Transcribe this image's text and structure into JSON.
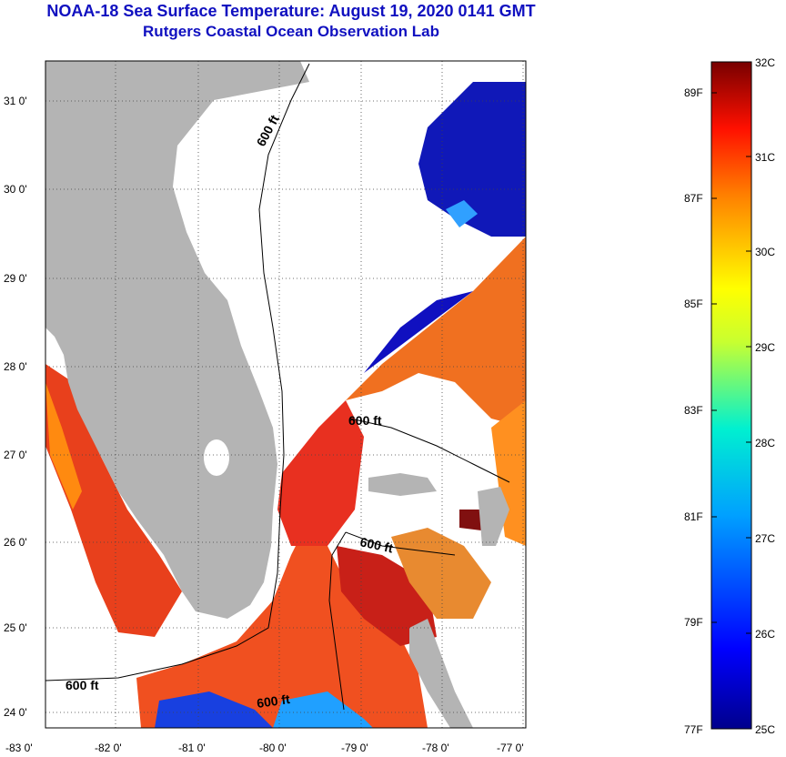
{
  "title": "NOAA-18 Sea Surface Temperature:  August 19, 2020 0141 GMT",
  "subtitle": "Rutgers Coastal Ocean Observation Lab",
  "map": {
    "lat_ticks": [
      "31 0'",
      "30 0'",
      "29 0'",
      "28 0'",
      "27 0'",
      "26 0'",
      "25 0'",
      "24 0'"
    ],
    "lon_ticks": [
      "-83 0'",
      "-82 0'",
      "-81 0'",
      "-80 0'",
      "-79 0'",
      "-78 0'",
      "-77 0'"
    ],
    "contour_label": "600 ft",
    "land_color": "#b4b4b4"
  },
  "colorbar": {
    "celsius_labels": [
      "32C",
      "31C",
      "30C",
      "29C",
      "28C",
      "27C",
      "26C",
      "25C"
    ],
    "fahrenheit_labels": [
      "89F",
      "87F",
      "85F",
      "83F",
      "81F",
      "79F",
      "77F"
    ]
  }
}
